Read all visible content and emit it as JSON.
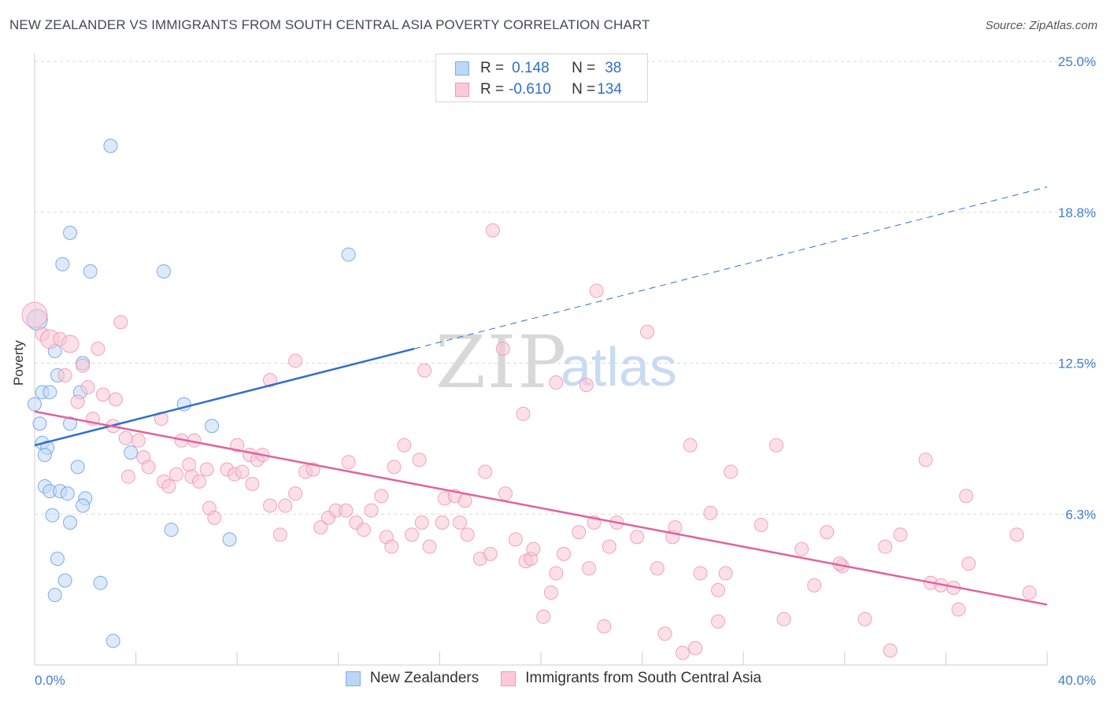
{
  "title": "NEW ZEALANDER VS IMMIGRANTS FROM SOUTH CENTRAL ASIA POVERTY CORRELATION CHART",
  "source": "Source: ZipAtlas.com",
  "watermark": {
    "zip": "ZIP",
    "atlas": "atlas"
  },
  "legend": {
    "rows": [
      {
        "r_label": "R = ",
        "r_value": "0.148",
        "n_label": "N = ",
        "n_value": "38",
        "color": "#7ab0ec",
        "fill": "#bcd6f6"
      },
      {
        "r_label": "R = ",
        "r_value": "-0.610",
        "n_label": "N = ",
        "n_value": "134",
        "color": "#f099b5",
        "fill": "#fbc9d8"
      }
    ]
  },
  "bottom_legend": [
    {
      "label": "New Zealanders",
      "color": "#7ab0ec",
      "fill": "#bcd6f6"
    },
    {
      "label": "Immigrants from South Central Asia",
      "color": "#f099b5",
      "fill": "#fbc9d8"
    }
  ],
  "chart_data": {
    "type": "scatter",
    "title": "NEW ZEALANDER VS IMMIGRANTS FROM SOUTH CENTRAL ASIA POVERTY CORRELATION CHART",
    "xlabel": "",
    "ylabel": "Poverty",
    "xlim": [
      0,
      40
    ],
    "ylim": [
      0,
      25
    ],
    "x_tick_labels": [
      "0.0%",
      "40.0%"
    ],
    "y_ticks": [
      6.25,
      12.5,
      18.75,
      25.0
    ],
    "y_tick_labels": [
      "6.3%",
      "12.5%",
      "18.8%",
      "25.0%"
    ],
    "series": [
      {
        "name": "New Zealanders",
        "color": "#5b9be6",
        "fill": "#c2d9f5",
        "line_color": "#2f6fce",
        "trend": {
          "x0": 0,
          "y0": 9.1,
          "x1": 15.0,
          "y1": 13.1,
          "dash_to_x": 40,
          "dash_to_y": 19.8
        },
        "points": [
          [
            3.0,
            21.5
          ],
          [
            1.4,
            17.9
          ],
          [
            1.1,
            16.6
          ],
          [
            2.2,
            16.3
          ],
          [
            5.1,
            16.3
          ],
          [
            12.4,
            17.0
          ],
          [
            0.1,
            14.3
          ],
          [
            0.8,
            13.0
          ],
          [
            0.9,
            12.0
          ],
          [
            1.9,
            12.5
          ],
          [
            0.3,
            11.3
          ],
          [
            0.6,
            11.3
          ],
          [
            1.8,
            11.3
          ],
          [
            0.0,
            10.8
          ],
          [
            1.4,
            10.0
          ],
          [
            5.9,
            10.8
          ],
          [
            0.2,
            10.0
          ],
          [
            7.0,
            9.9
          ],
          [
            0.3,
            9.2
          ],
          [
            0.5,
            9.0
          ],
          [
            0.4,
            8.7
          ],
          [
            3.8,
            8.8
          ],
          [
            1.7,
            8.2
          ],
          [
            0.4,
            7.4
          ],
          [
            0.6,
            7.2
          ],
          [
            1.0,
            7.2
          ],
          [
            1.3,
            7.1
          ],
          [
            2.0,
            6.9
          ],
          [
            1.9,
            6.6
          ],
          [
            0.7,
            6.2
          ],
          [
            1.4,
            5.9
          ],
          [
            5.4,
            5.6
          ],
          [
            7.7,
            5.2
          ],
          [
            0.9,
            4.4
          ],
          [
            1.2,
            3.5
          ],
          [
            2.6,
            3.4
          ],
          [
            0.8,
            2.9
          ],
          [
            3.1,
            1.0
          ]
        ]
      },
      {
        "name": "Immigrants from South Central Asia",
        "color": "#ee8fb0",
        "fill": "#f9c6d6",
        "line_color": "#e0649a",
        "trend": {
          "x0": 0,
          "y0": 10.5,
          "x1": 40,
          "y1": 2.5
        },
        "points": [
          [
            0.0,
            14.5
          ],
          [
            0.3,
            13.7
          ],
          [
            0.6,
            13.5
          ],
          [
            1.0,
            13.5
          ],
          [
            1.4,
            13.3
          ],
          [
            3.4,
            14.2
          ],
          [
            1.2,
            12.0
          ],
          [
            1.9,
            12.4
          ],
          [
            2.5,
            13.1
          ],
          [
            2.1,
            11.5
          ],
          [
            1.7,
            10.9
          ],
          [
            2.7,
            11.2
          ],
          [
            3.2,
            11.0
          ],
          [
            2.3,
            10.2
          ],
          [
            3.1,
            9.9
          ],
          [
            3.6,
            9.4
          ],
          [
            4.1,
            9.3
          ],
          [
            5.0,
            10.2
          ],
          [
            4.3,
            8.6
          ],
          [
            4.5,
            8.2
          ],
          [
            3.7,
            7.8
          ],
          [
            5.1,
            7.6
          ],
          [
            5.3,
            7.4
          ],
          [
            5.6,
            7.9
          ],
          [
            5.8,
            9.3
          ],
          [
            6.3,
            9.3
          ],
          [
            6.1,
            8.3
          ],
          [
            6.2,
            7.8
          ],
          [
            6.8,
            8.1
          ],
          [
            6.5,
            7.6
          ],
          [
            6.9,
            6.5
          ],
          [
            7.6,
            8.1
          ],
          [
            7.9,
            7.9
          ],
          [
            8.2,
            8.0
          ],
          [
            8.5,
            8.7
          ],
          [
            8.8,
            8.5
          ],
          [
            9.0,
            8.7
          ],
          [
            7.1,
            6.1
          ],
          [
            8.0,
            9.1
          ],
          [
            8.6,
            7.5
          ],
          [
            9.3,
            6.6
          ],
          [
            9.7,
            5.4
          ],
          [
            9.9,
            6.6
          ],
          [
            10.3,
            7.1
          ],
          [
            10.7,
            8.0
          ],
          [
            11.0,
            8.1
          ],
          [
            11.3,
            5.7
          ],
          [
            11.6,
            6.1
          ],
          [
            11.9,
            6.4
          ],
          [
            10.3,
            12.6
          ],
          [
            9.3,
            11.8
          ],
          [
            12.3,
            6.4
          ],
          [
            12.4,
            8.4
          ],
          [
            12.7,
            5.9
          ],
          [
            13.0,
            5.6
          ],
          [
            13.3,
            6.4
          ],
          [
            13.7,
            7.0
          ],
          [
            13.9,
            5.3
          ],
          [
            14.2,
            8.2
          ],
          [
            14.1,
            4.9
          ],
          [
            14.6,
            9.1
          ],
          [
            14.9,
            5.4
          ],
          [
            15.3,
            5.9
          ],
          [
            15.2,
            8.5
          ],
          [
            15.6,
            4.9
          ],
          [
            16.1,
            5.9
          ],
          [
            15.4,
            12.2
          ],
          [
            16.2,
            6.9
          ],
          [
            16.6,
            7.0
          ],
          [
            16.8,
            5.9
          ],
          [
            17.1,
            5.4
          ],
          [
            17.0,
            6.8
          ],
          [
            17.6,
            4.4
          ],
          [
            17.8,
            8.0
          ],
          [
            18.0,
            4.6
          ],
          [
            18.1,
            18.0
          ],
          [
            18.5,
            13.1
          ],
          [
            18.6,
            7.1
          ],
          [
            19.0,
            5.2
          ],
          [
            19.4,
            4.3
          ],
          [
            19.6,
            4.4
          ],
          [
            19.7,
            4.8
          ],
          [
            19.3,
            10.4
          ],
          [
            20.1,
            2.0
          ],
          [
            20.4,
            3.0
          ],
          [
            20.6,
            3.8
          ],
          [
            20.6,
            11.7
          ],
          [
            20.9,
            4.6
          ],
          [
            21.5,
            5.5
          ],
          [
            21.8,
            11.6
          ],
          [
            21.9,
            4.0
          ],
          [
            22.2,
            15.5
          ],
          [
            22.1,
            5.9
          ],
          [
            22.5,
            1.6
          ],
          [
            22.7,
            4.9
          ],
          [
            23.0,
            5.9
          ],
          [
            23.8,
            5.3
          ],
          [
            24.2,
            13.8
          ],
          [
            24.6,
            4.0
          ],
          [
            24.9,
            1.3
          ],
          [
            25.2,
            5.3
          ],
          [
            25.3,
            5.7
          ],
          [
            25.6,
            0.5
          ],
          [
            25.9,
            9.1
          ],
          [
            26.1,
            0.7
          ],
          [
            26.3,
            3.8
          ],
          [
            26.7,
            6.3
          ],
          [
            27.0,
            3.1
          ],
          [
            27.3,
            3.8
          ],
          [
            27.5,
            8.0
          ],
          [
            27.0,
            1.8
          ],
          [
            28.7,
            5.8
          ],
          [
            29.3,
            9.1
          ],
          [
            29.6,
            1.9
          ],
          [
            30.3,
            4.8
          ],
          [
            30.8,
            3.3
          ],
          [
            31.3,
            5.5
          ],
          [
            31.9,
            4.1
          ],
          [
            31.8,
            4.2
          ],
          [
            32.8,
            1.9
          ],
          [
            33.8,
            0.6
          ],
          [
            33.6,
            4.9
          ],
          [
            34.2,
            5.4
          ],
          [
            35.4,
            3.4
          ],
          [
            35.8,
            3.3
          ],
          [
            36.3,
            3.2
          ],
          [
            36.5,
            2.3
          ],
          [
            36.8,
            7.0
          ],
          [
            36.9,
            4.2
          ],
          [
            35.2,
            8.5
          ],
          [
            38.8,
            5.4
          ],
          [
            39.3,
            3.0
          ]
        ]
      }
    ]
  }
}
